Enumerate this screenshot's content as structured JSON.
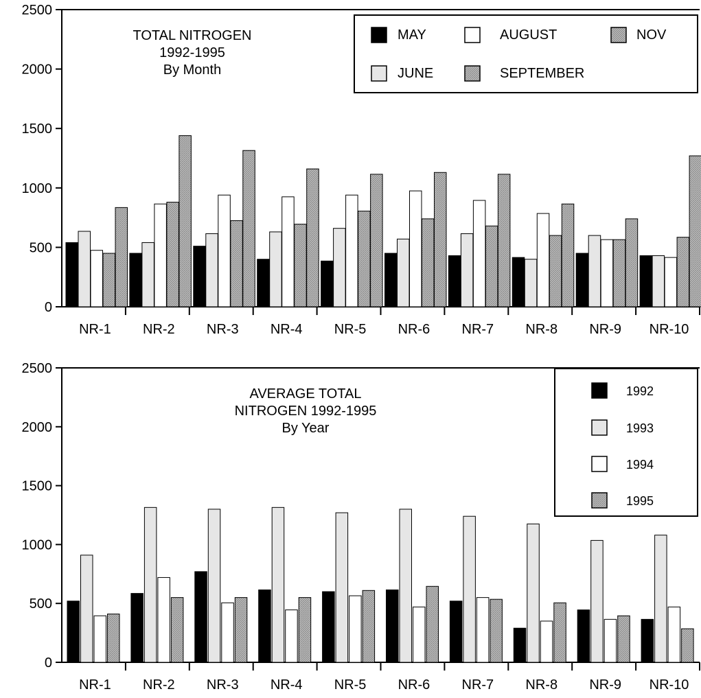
{
  "colors": {
    "black": "#000000",
    "light_gray": "#e6e6e6",
    "white": "#ffffff",
    "hatch_gray": "#b0b0b0"
  },
  "chart_data": [
    {
      "type": "bar",
      "title_lines": [
        "TOTAL NITROGEN",
        "1992-1995",
        "By Month"
      ],
      "xlabel": "",
      "ylabel": "",
      "ylim": [
        0,
        2500
      ],
      "yticks": [
        "0",
        "500",
        "1000",
        "1500",
        "2000",
        "2500"
      ],
      "categories": [
        "NR-1",
        "NR-2",
        "NR-3",
        "NR-4",
        "NR-5",
        "NR-6",
        "NR-7",
        "NR-8",
        "NR-9",
        "NR-10"
      ],
      "legend_position": "top-right",
      "series": [
        {
          "name": "MAY",
          "fill": "black",
          "values": [
            540,
            450,
            510,
            400,
            385,
            450,
            430,
            415,
            450,
            430
          ]
        },
        {
          "name": "JUNE",
          "fill": "light_gray",
          "values": [
            635,
            540,
            615,
            630,
            660,
            570,
            615,
            400,
            600,
            430
          ]
        },
        {
          "name": "AUGUST",
          "fill": "white",
          "values": [
            475,
            865,
            940,
            925,
            940,
            975,
            895,
            785,
            565,
            415
          ]
        },
        {
          "name": "SEPTEMBER",
          "fill": "hatch",
          "values": [
            450,
            880,
            725,
            695,
            805,
            740,
            680,
            600,
            565,
            585
          ]
        },
        {
          "name": "NOV",
          "fill": "hatch",
          "values": [
            835,
            1440,
            1315,
            1160,
            1115,
            1130,
            1115,
            865,
            740,
            1270
          ]
        }
      ]
    },
    {
      "type": "bar",
      "title_lines": [
        "AVERAGE TOTAL",
        "NITROGEN 1992-1995",
        "By Year"
      ],
      "xlabel": "",
      "ylabel": "",
      "ylim": [
        0,
        2500
      ],
      "yticks": [
        "0",
        "500",
        "1000",
        "1500",
        "2000",
        "2500"
      ],
      "categories": [
        "NR-1",
        "NR-2",
        "NR-3",
        "NR-4",
        "NR-5",
        "NR-6",
        "NR-7",
        "NR-8",
        "NR-9",
        "NR-10"
      ],
      "legend_position": "top-right",
      "series": [
        {
          "name": "1992",
          "fill": "black",
          "values": [
            520,
            585,
            770,
            615,
            600,
            615,
            520,
            290,
            445,
            365
          ]
        },
        {
          "name": "1993",
          "fill": "light_gray",
          "values": [
            910,
            1315,
            1300,
            1315,
            1270,
            1300,
            1240,
            1175,
            1035,
            1080
          ]
        },
        {
          "name": "1994",
          "fill": "white",
          "values": [
            395,
            720,
            505,
            445,
            565,
            470,
            550,
            350,
            365,
            470
          ]
        },
        {
          "name": "1995",
          "fill": "hatch",
          "values": [
            410,
            550,
            550,
            550,
            610,
            645,
            535,
            505,
            395,
            285
          ]
        }
      ]
    }
  ]
}
